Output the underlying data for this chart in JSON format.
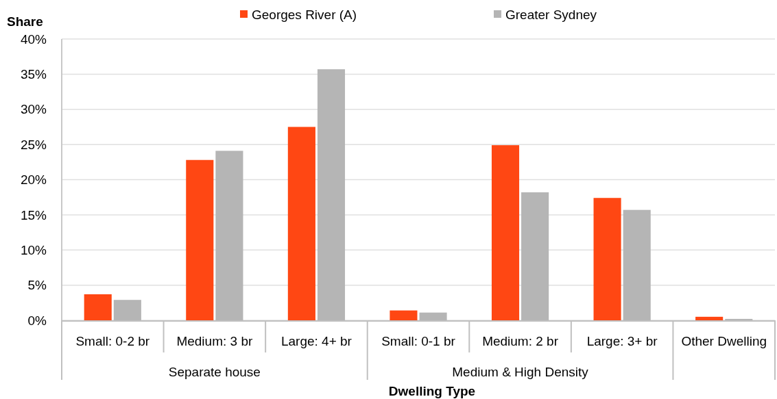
{
  "chart_data": {
    "type": "bar",
    "xlabel": "Dwelling Type",
    "ylabel": "Share",
    "categories": [
      "Small: 0-2 br",
      "Medium: 3 br",
      "Large: 4+ br",
      "Small: 0-1 br",
      "Medium: 2 br",
      "Large: 3+ br",
      "Other Dwelling"
    ],
    "series": [
      {
        "name": "Georges River (A)",
        "color": "#ff4713",
        "values": [
          3.7,
          22.8,
          27.5,
          1.4,
          24.9,
          17.4,
          0.5
        ]
      },
      {
        "name": "Greater Sydney",
        "color": "#b5b5b5",
        "values": [
          2.9,
          24.1,
          35.7,
          1.1,
          18.2,
          15.7,
          0.2
        ]
      }
    ],
    "ylim": [
      0,
      40
    ],
    "yticks": [
      {
        "value": 0,
        "label": "0%"
      },
      {
        "value": 5,
        "label": "5%"
      },
      {
        "value": 10,
        "label": "10%"
      },
      {
        "value": 15,
        "label": "15%"
      },
      {
        "value": 20,
        "label": "20%"
      },
      {
        "value": 25,
        "label": "25%"
      },
      {
        "value": 30,
        "label": "30%"
      },
      {
        "value": 35,
        "label": "35%"
      },
      {
        "value": 40,
        "label": "40%"
      }
    ],
    "grid": "y",
    "legend": "top",
    "annotations": [
      "Separate house",
      "Medium & High Density"
    ]
  }
}
